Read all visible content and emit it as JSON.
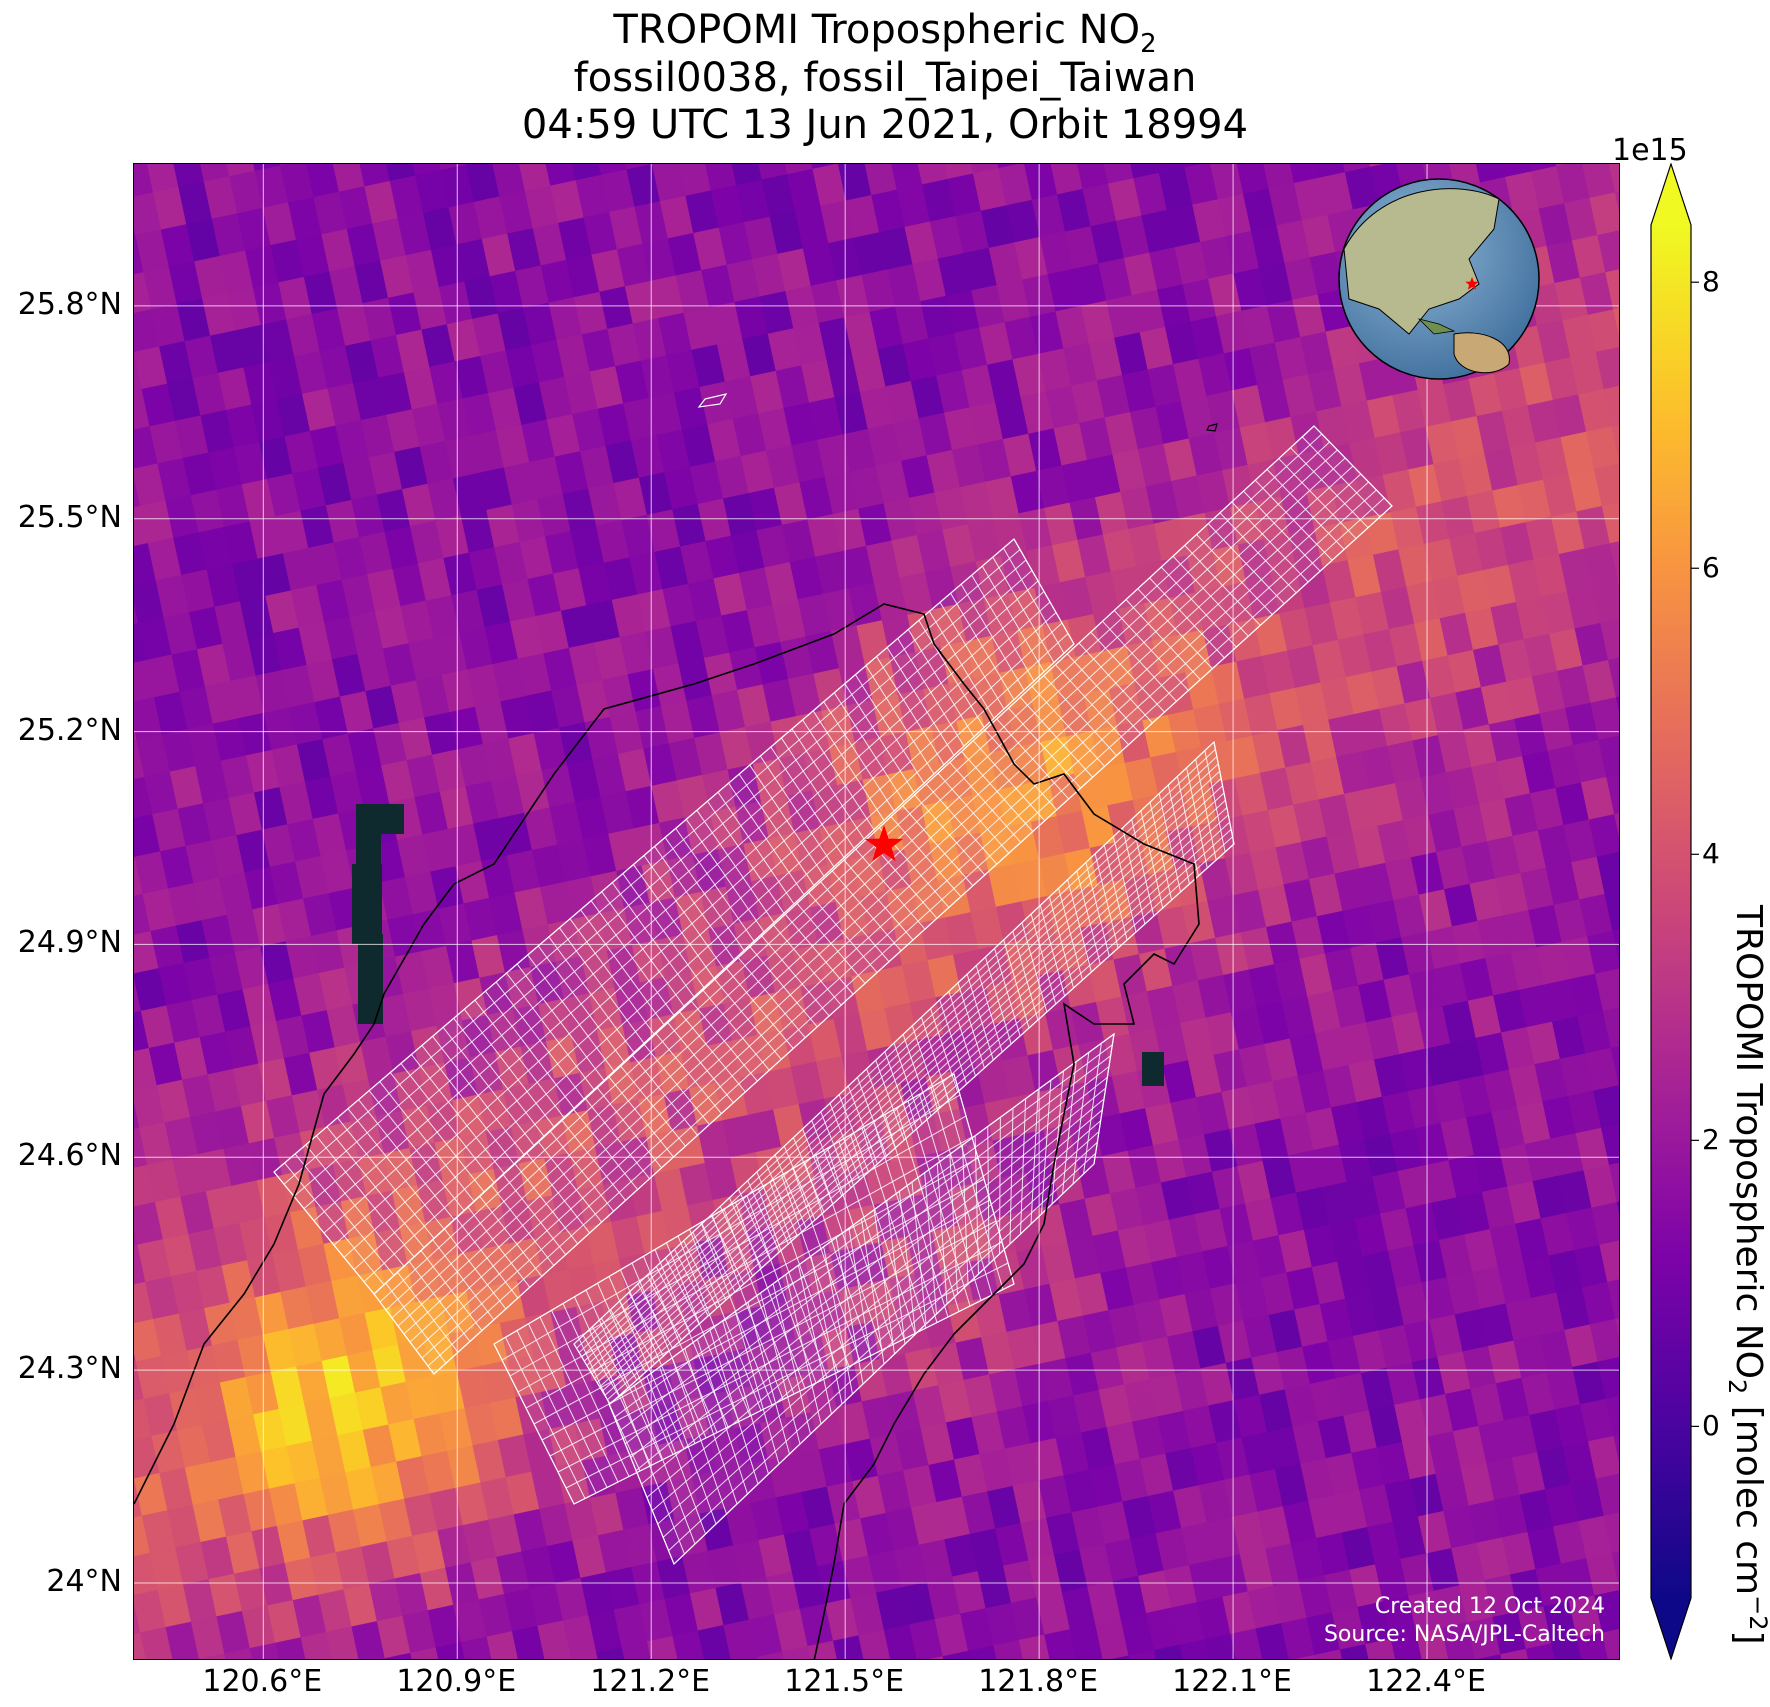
{
  "title": {
    "line1_prefix": "TROPOMI Tropospheric NO",
    "line1_sub": "2",
    "line2": "fossil0038, fossil_Taipei_Taiwan",
    "line3": "04:59 UTC 13 Jun 2021, Orbit 18994"
  },
  "map": {
    "lon_range": [
      120.4,
      122.7
    ],
    "lat_range": [
      23.89,
      26.0
    ],
    "lat_ticks": [
      "25.8°N",
      "25.5°N",
      "25.2°N",
      "24.9°N",
      "24.6°N",
      "24.3°N",
      "24°N"
    ],
    "lat_tick_values": [
      25.8,
      25.5,
      25.2,
      24.9,
      24.6,
      24.3,
      24.0
    ],
    "lon_ticks": [
      "120.6°E",
      "120.9°E",
      "121.2°E",
      "121.5°E",
      "121.8°E",
      "122.1°E",
      "122.4°E"
    ],
    "lon_tick_values": [
      120.6,
      120.9,
      121.2,
      121.5,
      121.8,
      122.1,
      122.4
    ],
    "site_marker": {
      "lon": 121.56,
      "lat": 25.04,
      "color": "#ff0000"
    },
    "inset_globe": {
      "center_region": "East Asia",
      "marker_color": "#ff0000"
    },
    "credit_line1": "Created 12 Oct 2024",
    "credit_line2": "Source: NASA/JPL-Caltech"
  },
  "colorbar": {
    "scale_label": "1e15",
    "ticks": [
      "8",
      "6",
      "4",
      "2",
      "0"
    ],
    "tick_values": [
      8,
      6,
      4,
      2,
      0
    ],
    "range": [
      -1.2,
      8.4
    ],
    "colormap": "plasma",
    "label_prefix": "TROPOMI Tropospheric NO",
    "label_sub": "2",
    "label_units": " [molec cm",
    "label_exp": "−2",
    "label_end": "]",
    "extend": "both"
  }
}
